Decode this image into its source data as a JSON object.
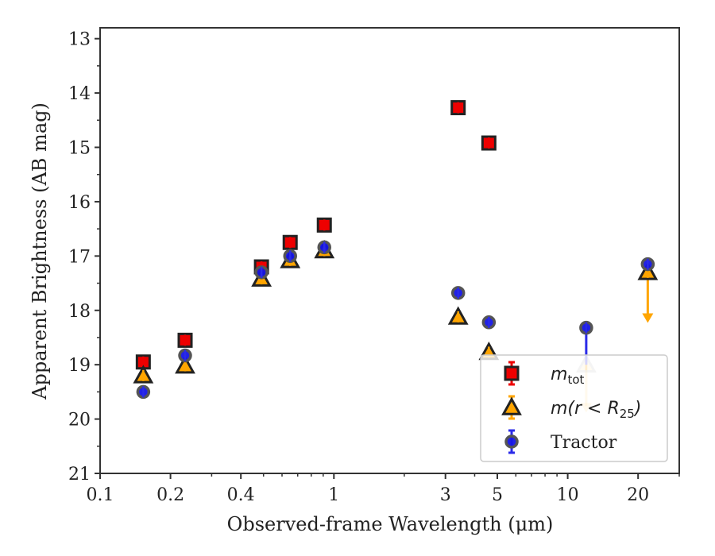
{
  "chart_data": {
    "type": "scatter",
    "xlabel": "Observed-frame Wavelength (μm)",
    "ylabel": "Apparent Brightness (AB mag)",
    "xscale": "log",
    "xlim": [
      0.1,
      30
    ],
    "ylim": [
      21,
      12.8
    ],
    "y_inverted": true,
    "grid": false,
    "legend_position": "lower-right",
    "xticks": [
      {
        "value": 0.1,
        "label": "0.1"
      },
      {
        "value": 0.2,
        "label": "0.2"
      },
      {
        "value": 0.4,
        "label": "0.4"
      },
      {
        "value": 1,
        "label": "1"
      },
      {
        "value": 3,
        "label": "3"
      },
      {
        "value": 5,
        "label": "5"
      },
      {
        "value": 10,
        "label": "10"
      },
      {
        "value": 20,
        "label": "20"
      }
    ],
    "yticks": [
      {
        "value": 13,
        "label": "13"
      },
      {
        "value": 14,
        "label": "14"
      },
      {
        "value": 15,
        "label": "15"
      },
      {
        "value": 16,
        "label": "16"
      },
      {
        "value": 17,
        "label": "17"
      },
      {
        "value": 18,
        "label": "18"
      },
      {
        "value": 19,
        "label": "19"
      },
      {
        "value": 20,
        "label": "20"
      },
      {
        "value": 21,
        "label": "21"
      }
    ],
    "series": [
      {
        "name": "m_tot",
        "legend_label": {
          "base": "m",
          "sub": "tot"
        },
        "marker": "square",
        "face_color": "#ee0000",
        "edge_color": "#222222",
        "error_color": "#ee0000",
        "points": [
          {
            "x": 0.153,
            "y": 18.95
          },
          {
            "x": 0.231,
            "y": 18.55
          },
          {
            "x": 0.49,
            "y": 17.2
          },
          {
            "x": 0.65,
            "y": 16.75
          },
          {
            "x": 0.91,
            "y": 16.43
          },
          {
            "x": 3.4,
            "y": 14.27
          },
          {
            "x": 4.6,
            "y": 14.92
          }
        ]
      },
      {
        "name": "m(r < R25)",
        "legend_label": {
          "base": "m(r < R",
          "sub": "25",
          "tail": ")"
        },
        "marker": "triangle",
        "face_color": "#ffa500",
        "edge_color": "#222222",
        "error_color": "#ffa500",
        "points": [
          {
            "x": 0.153,
            "y": 19.2
          },
          {
            "x": 0.231,
            "y": 19.02
          },
          {
            "x": 0.49,
            "y": 17.42
          },
          {
            "x": 0.65,
            "y": 17.08
          },
          {
            "x": 0.91,
            "y": 16.9
          },
          {
            "x": 3.4,
            "y": 18.12
          },
          {
            "x": 4.6,
            "y": 18.77
          },
          {
            "x": 12.0,
            "y": 19.0,
            "faded": true,
            "upper_limit_arrow": 19.85
          },
          {
            "x": 22.0,
            "y": 17.3,
            "upper_limit_arrow": 18.2
          }
        ]
      },
      {
        "name": "Tractor",
        "legend_label": {
          "base": "Tractor"
        },
        "marker": "circle",
        "face_color": "#1515e6",
        "edge_color": "#555555",
        "error_color": "#2a2ae8",
        "points": [
          {
            "x": 0.153,
            "y": 19.5
          },
          {
            "x": 0.231,
            "y": 18.83
          },
          {
            "x": 0.49,
            "y": 17.3
          },
          {
            "x": 0.65,
            "y": 17.0
          },
          {
            "x": 0.91,
            "y": 16.84
          },
          {
            "x": 3.4,
            "y": 17.68
          },
          {
            "x": 4.6,
            "y": 18.22
          },
          {
            "x": 12.0,
            "y": 18.32,
            "error_down_to": 19.0
          },
          {
            "x": 22.0,
            "y": 17.15
          }
        ]
      }
    ]
  }
}
